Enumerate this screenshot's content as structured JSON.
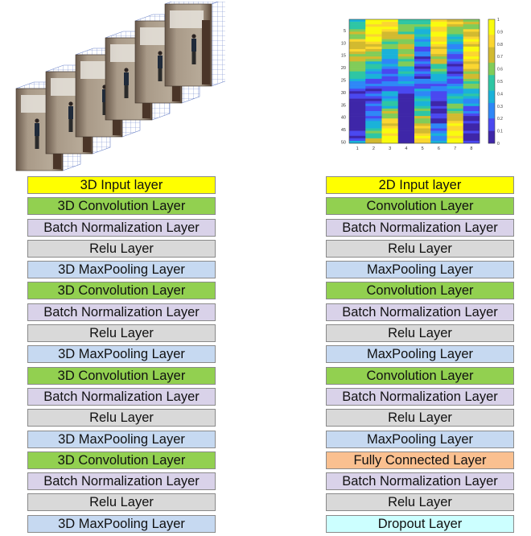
{
  "figure": {
    "frames_image": "video-frames-stack",
    "heatmap": {
      "y_ticks": [
        "5",
        "10",
        "15",
        "20",
        "25",
        "30",
        "35",
        "40",
        "45",
        "50"
      ],
      "x_ticks": [
        "1",
        "2",
        "3",
        "4",
        "5",
        "6",
        "7",
        "8"
      ],
      "colorbar_ticks": [
        "1",
        "0.9",
        "0.8",
        "0.7",
        "0.6",
        "0.5",
        "0.4",
        "0.3",
        "0.2",
        "0.1",
        "0"
      ],
      "colormap": [
        "#3e26a8",
        "#4a48f0",
        "#2e87f7",
        "#1ab2d9",
        "#2ec6a4",
        "#81cc59",
        "#d2ba30",
        "#fbd630",
        "#f9fb0e"
      ]
    }
  },
  "colors": {
    "input": "#ffff00",
    "conv": "#92d050",
    "bn": "#d9d2e9",
    "relu": "#d9d9d9",
    "pool": "#c6d9f1",
    "fc": "#fac090",
    "dropout": "#ccffff"
  },
  "network_3d": {
    "layers": [
      {
        "label": "3D Input layer",
        "kind": "input"
      },
      {
        "label": "3D Convolution Layer",
        "kind": "conv"
      },
      {
        "label": "Batch Normalization Layer",
        "kind": "bn"
      },
      {
        "label": "Relu Layer",
        "kind": "relu"
      },
      {
        "label": "3D MaxPooling Layer",
        "kind": "pool"
      },
      {
        "label": "3D Convolution Layer",
        "kind": "conv"
      },
      {
        "label": "Batch Normalization Layer",
        "kind": "bn"
      },
      {
        "label": "Relu Layer",
        "kind": "relu"
      },
      {
        "label": "3D MaxPooling Layer",
        "kind": "pool"
      },
      {
        "label": "3D Convolution Layer",
        "kind": "conv"
      },
      {
        "label": "Batch Normalization Layer",
        "kind": "bn"
      },
      {
        "label": "Relu Layer",
        "kind": "relu"
      },
      {
        "label": "3D MaxPooling Layer",
        "kind": "pool"
      },
      {
        "label": "3D Convolution Layer",
        "kind": "conv"
      },
      {
        "label": "Batch Normalization Layer",
        "kind": "bn"
      },
      {
        "label": "Relu Layer",
        "kind": "relu"
      },
      {
        "label": "3D MaxPooling Layer",
        "kind": "pool"
      }
    ]
  },
  "network_2d": {
    "layers": [
      {
        "label": "2D Input layer",
        "kind": "input"
      },
      {
        "label": "Convolution Layer",
        "kind": "conv"
      },
      {
        "label": "Batch Normalization Layer",
        "kind": "bn"
      },
      {
        "label": "Relu Layer",
        "kind": "relu"
      },
      {
        "label": "MaxPooling Layer",
        "kind": "pool"
      },
      {
        "label": "Convolution Layer",
        "kind": "conv"
      },
      {
        "label": "Batch Normalization Layer",
        "kind": "bn"
      },
      {
        "label": "Relu Layer",
        "kind": "relu"
      },
      {
        "label": "MaxPooling Layer",
        "kind": "pool"
      },
      {
        "label": "Convolution Layer",
        "kind": "conv"
      },
      {
        "label": "Batch Normalization Layer",
        "kind": "bn"
      },
      {
        "label": "Relu Layer",
        "kind": "relu"
      },
      {
        "label": "MaxPooling Layer",
        "kind": "pool"
      },
      {
        "label": "Fully Connected Layer",
        "kind": "fc"
      },
      {
        "label": "Batch Normalization Layer",
        "kind": "bn"
      },
      {
        "label": "Relu Layer",
        "kind": "relu"
      },
      {
        "label": "Dropout Layer",
        "kind": "dropout"
      }
    ]
  }
}
